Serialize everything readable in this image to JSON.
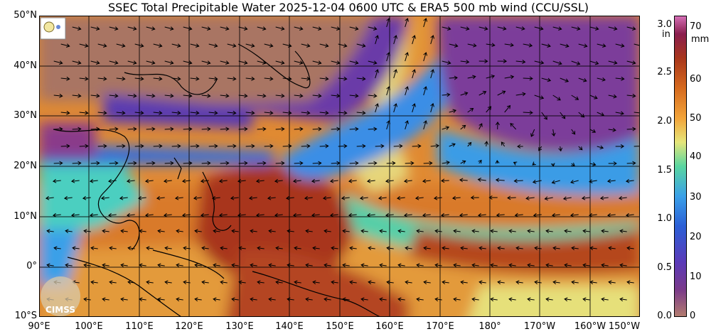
{
  "title": "SSEC Total Precipitable Water  2025-12-04 0600 UTC & ERA5 500 mb wind (CCU/SSL)",
  "logo_text": "CIMSS",
  "lat_labels": [
    "50°N",
    "40°N",
    "30°N",
    "20°N",
    "10°N",
    "0°",
    "10°S"
  ],
  "lon_labels": [
    "90°E",
    "100°E",
    "110°E",
    "120°E",
    "130°E",
    "140°E",
    "150°E",
    "160°E",
    "170°E",
    "180°",
    "170°W",
    "160°W",
    "150°W"
  ],
  "colorbar": {
    "mm_label": "mm",
    "in_label": "in",
    "mm_ticks": [
      "70",
      "60",
      "50",
      "40",
      "30",
      "20",
      "10",
      "0"
    ],
    "in_ticks": [
      "3.0",
      "2.5",
      "2.0",
      "1.5",
      "1.0",
      "0.5",
      "0.0"
    ],
    "colors": [
      "#b37c6e",
      "#7a3a8a",
      "#5b3ab8",
      "#2c5fd6",
      "#3aa0e8",
      "#59d6a0",
      "#e6e67a",
      "#f2a43a",
      "#d66a1e",
      "#a8361c",
      "#8a1e4e",
      "#d670b8"
    ]
  },
  "map_colors": {
    "land_high": "#b07a68",
    "dry_purple": "#7b3e9a",
    "blue": "#3a8ee6",
    "teal": "#4ccfc0",
    "yellow": "#e2da7a",
    "orange": "#e08a32",
    "moist_red": "#a5391f"
  }
}
